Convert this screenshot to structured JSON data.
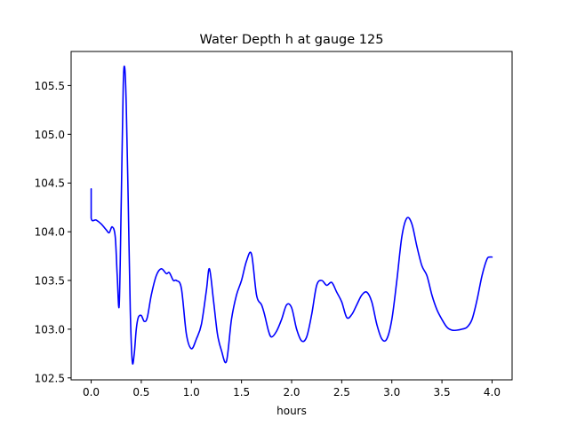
{
  "chart_data": {
    "type": "line",
    "title": "Water Depth h at gauge 125",
    "xlabel": "hours",
    "ylabel": "",
    "xlim": [
      -0.2,
      4.2
    ],
    "ylim": [
      102.48,
      105.85
    ],
    "xticks": [
      0.0,
      0.5,
      1.0,
      1.5,
      2.0,
      2.5,
      3.0,
      3.5,
      4.0
    ],
    "xtick_labels": [
      "0.0",
      "0.5",
      "1.0",
      "1.5",
      "2.0",
      "2.5",
      "3.0",
      "3.5",
      "4.0"
    ],
    "yticks": [
      102.5,
      103.0,
      103.5,
      104.0,
      104.5,
      105.0,
      105.5
    ],
    "ytick_labels": [
      "102.5",
      "103.0",
      "103.5",
      "104.0",
      "104.5",
      "105.0",
      "105.5"
    ],
    "grid": false,
    "series": [
      {
        "color": "#0000ff",
        "x": [
          0.0,
          0.0,
          0.05,
          0.1,
          0.15,
          0.18,
          0.21,
          0.24,
          0.26,
          0.28,
          0.3,
          0.32,
          0.335,
          0.35,
          0.37,
          0.39,
          0.41,
          0.43,
          0.45,
          0.47,
          0.5,
          0.53,
          0.56,
          0.6,
          0.65,
          0.7,
          0.75,
          0.78,
          0.82,
          0.85,
          0.9,
          0.95,
          1.0,
          1.05,
          1.1,
          1.15,
          1.18,
          1.22,
          1.26,
          1.3,
          1.35,
          1.4,
          1.45,
          1.5,
          1.55,
          1.6,
          1.65,
          1.7,
          1.73,
          1.77,
          1.8,
          1.85,
          1.9,
          1.95,
          2.0,
          2.05,
          2.1,
          2.15,
          2.2,
          2.25,
          2.3,
          2.35,
          2.4,
          2.45,
          2.5,
          2.55,
          2.6,
          2.65,
          2.7,
          2.75,
          2.8,
          2.85,
          2.9,
          2.95,
          3.0,
          3.05,
          3.1,
          3.15,
          3.2,
          3.25,
          3.3,
          3.35,
          3.4,
          3.45,
          3.5,
          3.55,
          3.6,
          3.65,
          3.7,
          3.75,
          3.8,
          3.85,
          3.9,
          3.95,
          3.98,
          4.0
        ],
        "values": [
          104.44,
          104.14,
          104.12,
          104.08,
          104.02,
          103.99,
          104.05,
          103.95,
          103.55,
          103.25,
          104.3,
          105.5,
          105.68,
          105.3,
          104.3,
          103.2,
          102.67,
          102.75,
          103.0,
          103.12,
          103.14,
          103.08,
          103.12,
          103.35,
          103.55,
          103.62,
          103.57,
          103.58,
          103.5,
          103.5,
          103.42,
          102.95,
          102.8,
          102.9,
          103.05,
          103.4,
          103.62,
          103.3,
          102.95,
          102.78,
          102.67,
          103.1,
          103.35,
          103.5,
          103.7,
          103.77,
          103.35,
          103.25,
          103.15,
          102.98,
          102.92,
          102.98,
          103.1,
          103.25,
          103.22,
          103.0,
          102.88,
          102.92,
          103.15,
          103.45,
          103.5,
          103.45,
          103.48,
          103.38,
          103.28,
          103.12,
          103.15,
          103.25,
          103.35,
          103.38,
          103.28,
          103.05,
          102.9,
          102.9,
          103.1,
          103.5,
          103.95,
          104.14,
          104.08,
          103.85,
          103.65,
          103.55,
          103.35,
          103.2,
          103.1,
          103.02,
          102.99,
          102.99,
          103.0,
          103.02,
          103.1,
          103.3,
          103.55,
          103.72,
          103.74,
          103.74
        ]
      }
    ]
  }
}
